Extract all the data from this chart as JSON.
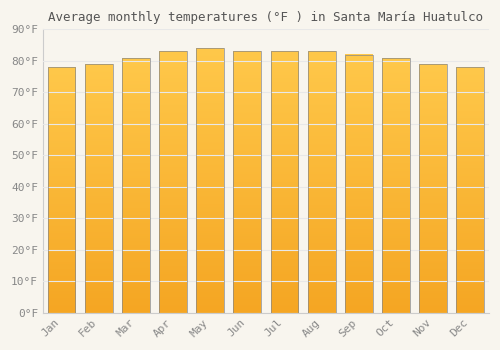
{
  "title": "Average monthly temperatures (°F ) in Santa María Huatulco",
  "months": [
    "Jan",
    "Feb",
    "Mar",
    "Apr",
    "May",
    "Jun",
    "Jul",
    "Aug",
    "Sep",
    "Oct",
    "Nov",
    "Dec"
  ],
  "values": [
    78,
    79,
    81,
    83,
    84,
    83,
    83,
    83,
    82,
    81,
    79,
    78
  ],
  "ylim": [
    0,
    90
  ],
  "yticks": [
    0,
    10,
    20,
    30,
    40,
    50,
    60,
    70,
    80,
    90
  ],
  "ytick_labels": [
    "0°F",
    "10°F",
    "20°F",
    "30°F",
    "40°F",
    "50°F",
    "60°F",
    "70°F",
    "80°F",
    "90°F"
  ],
  "background_color": "#f8f5ee",
  "grid_color": "#e8e8e8",
  "bar_color_bottom": "#F5A623",
  "bar_color_top": "#FFC84A",
  "bar_edge_color": "#888888",
  "title_fontsize": 9,
  "tick_fontsize": 8,
  "bar_width": 0.75
}
